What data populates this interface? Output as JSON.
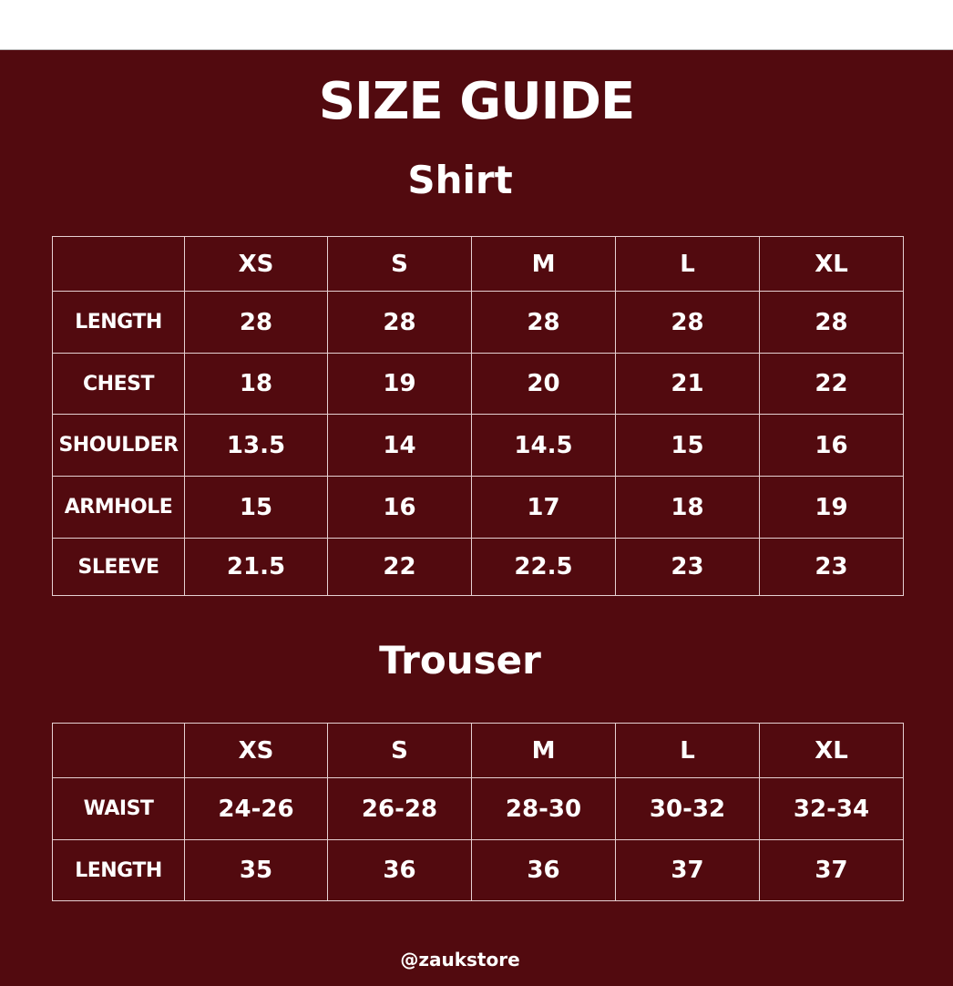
{
  "title": "SIZE GUIDE",
  "background_color": "#520a0f",
  "shirt": {
    "heading": "Shirt",
    "sizes": [
      "XS",
      "S",
      "M",
      "L",
      "XL"
    ],
    "rows": [
      {
        "label": "LENGTH",
        "values": [
          "28",
          "28",
          "28",
          "28",
          "28"
        ]
      },
      {
        "label": "CHEST",
        "values": [
          "18",
          "19",
          "20",
          "21",
          "22"
        ]
      },
      {
        "label": "SHOULDER",
        "values": [
          "13.5",
          "14",
          "14.5",
          "15",
          "16"
        ]
      },
      {
        "label": "ARMHOLE",
        "values": [
          "15",
          "16",
          "17",
          "18",
          "19"
        ]
      },
      {
        "label": "SLEEVE",
        "values": [
          "21.5",
          "22",
          "22.5",
          "23",
          "23"
        ]
      }
    ]
  },
  "trouser": {
    "heading": "Trouser",
    "sizes": [
      "XS",
      "S",
      "M",
      "L",
      "XL"
    ],
    "rows": [
      {
        "label": "WAIST",
        "values": [
          "24-26",
          "26-28",
          "28-30",
          "30-32",
          "32-34"
        ]
      },
      {
        "label": "LENGTH",
        "values": [
          "35",
          "36",
          "36",
          "37",
          "37"
        ]
      }
    ]
  },
  "footer": "@zaukstore"
}
